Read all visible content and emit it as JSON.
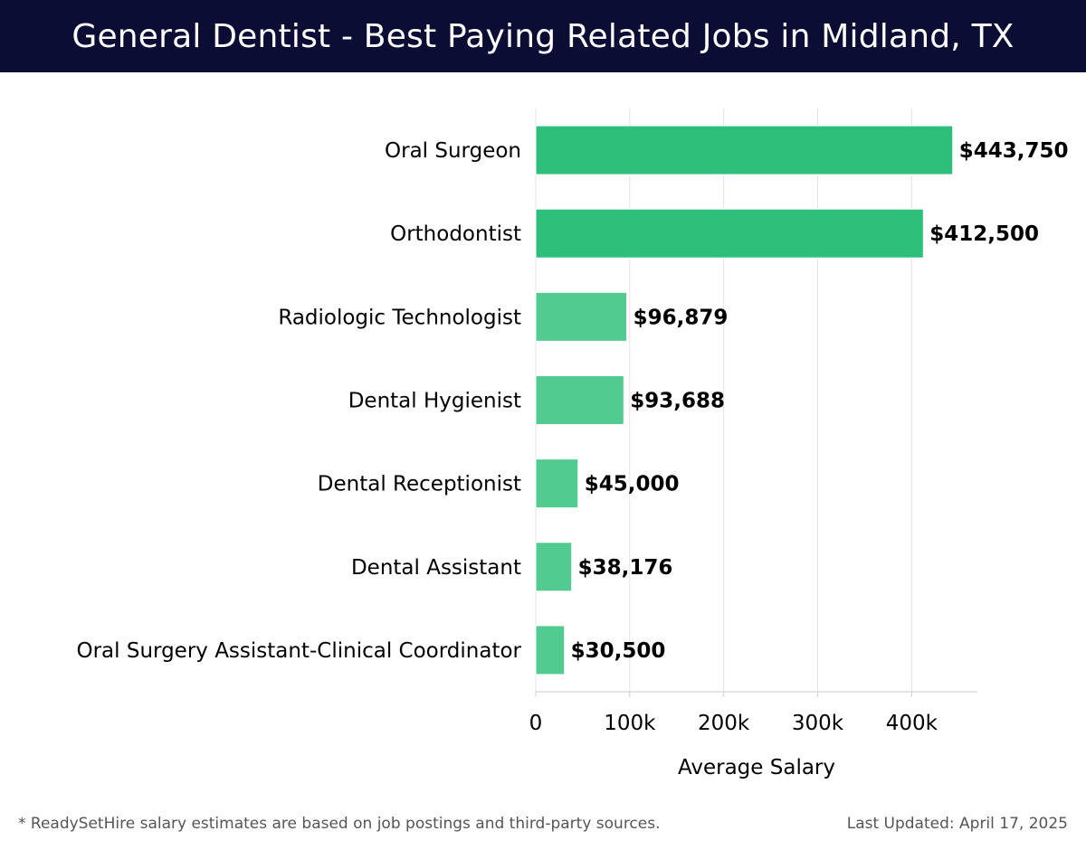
{
  "colors": {
    "header_bg": "#0b0d35",
    "bar_primary": "#2ec07a",
    "bar_secondary": "#52cb91",
    "grid": "#e2e2e2",
    "axis": "#cccccc",
    "text": "#000000",
    "footer_text": "#555555"
  },
  "chart_data": {
    "type": "bar",
    "orientation": "horizontal",
    "title": "General Dentist - Best Paying Related Jobs in Midland, TX",
    "xlabel": "Average Salary",
    "ylabel": "",
    "xlim": [
      0,
      470000
    ],
    "xticks": [
      0,
      100000,
      200000,
      300000,
      400000
    ],
    "xtick_labels": [
      "0",
      "100k",
      "200k",
      "300k",
      "400k"
    ],
    "grid": true,
    "categories": [
      "Oral Surgeon",
      "Orthodontist",
      "Radiologic Technologist",
      "Dental Hygienist",
      "Dental Receptionist",
      "Dental Assistant",
      "Oral Surgery Assistant-Clinical Coordinator"
    ],
    "values": [
      443750,
      412500,
      96879,
      93688,
      45000,
      38176,
      30500
    ],
    "value_labels": [
      "$443,750",
      "$412,500",
      "$96,879",
      "$93,688",
      "$45,000",
      "$38,176",
      "$30,500"
    ],
    "highlighted": [
      true,
      true,
      false,
      false,
      false,
      false,
      false
    ]
  },
  "footer": {
    "note": "* ReadySetHire salary estimates are based on job postings and third-party sources.",
    "updated": "Last Updated: April 17, 2025"
  }
}
